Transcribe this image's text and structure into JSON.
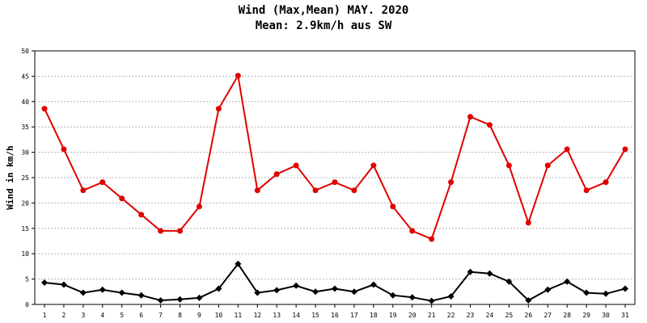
{
  "chart_data": {
    "type": "line",
    "title": "Wind (Max,Mean) MAY. 2020",
    "subtitle": "Mean: 2.9km/h aus SW",
    "xlabel": "",
    "ylabel": "Wind in km/h",
    "x": [
      "1",
      "2",
      "3",
      "4",
      "5",
      "6",
      "7",
      "8",
      "9",
      "10",
      "11",
      "12",
      "13",
      "14",
      "15",
      "16",
      "17",
      "18",
      "19",
      "20",
      "21",
      "22",
      "23",
      "24",
      "25",
      "26",
      "27",
      "28",
      "29",
      "30",
      "31"
    ],
    "yticks": [
      "0",
      "5",
      "10",
      "15",
      "20",
      "25",
      "30",
      "35",
      "40",
      "45",
      "50"
    ],
    "ylim": [
      0,
      50
    ],
    "grid": true,
    "series": [
      {
        "color": "#e00000",
        "marker": "circle",
        "values": [
          38.6,
          30.6,
          22.5,
          24.1,
          20.9,
          17.7,
          14.5,
          14.5,
          19.3,
          38.6,
          45.1,
          22.5,
          25.7,
          27.4,
          22.5,
          24.1,
          22.5,
          27.4,
          19.3,
          14.5,
          12.9,
          24.1,
          37.0,
          35.4,
          27.4,
          16.1,
          27.4,
          30.6,
          22.5,
          24.1,
          30.6
        ]
      },
      {
        "color": "#000000",
        "marker": "diamond",
        "values": [
          4.3,
          3.9,
          2.3,
          2.9,
          2.3,
          1.8,
          0.8,
          1.0,
          1.3,
          3.1,
          8.0,
          2.3,
          2.8,
          3.7,
          2.5,
          3.1,
          2.5,
          3.9,
          1.8,
          1.4,
          0.7,
          1.6,
          6.4,
          6.1,
          4.5,
          0.8,
          2.9,
          4.5,
          2.3,
          2.1,
          3.1
        ]
      }
    ]
  }
}
